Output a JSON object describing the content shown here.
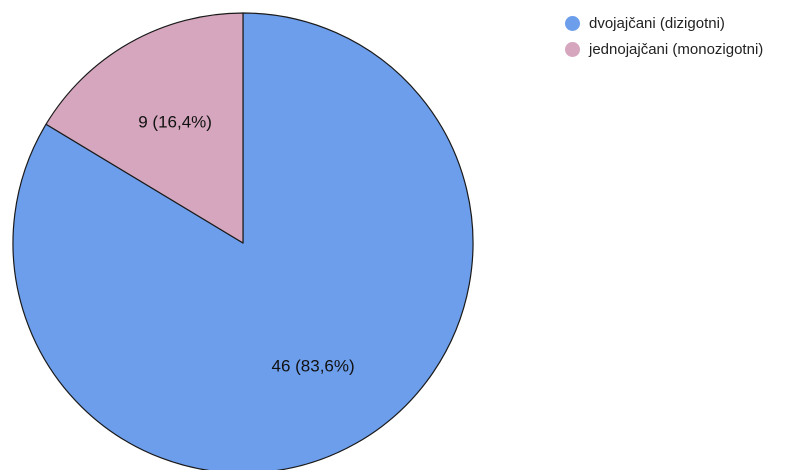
{
  "chart_data": {
    "type": "pie",
    "categories": [
      "dvojajčani (dizigotni)",
      "jednojajčani (monozigotni)"
    ],
    "values": [
      46,
      9
    ],
    "slice_labels": [
      "46 (83,6%)",
      "9 (16,4%)"
    ],
    "colors": [
      "#6d9eeb",
      "#d5a6bd"
    ],
    "legend_position": "top-right"
  },
  "legend": {
    "items": [
      {
        "label": "dvojajčani (dizigotni)",
        "color": "#6d9eeb"
      },
      {
        "label": "jednojajčani (monozigotni)",
        "color": "#d5a6bd"
      }
    ]
  }
}
